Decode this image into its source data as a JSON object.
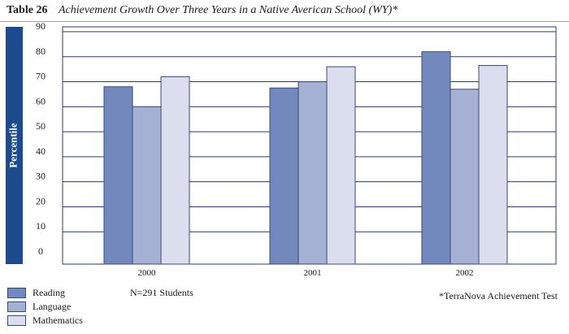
{
  "header": {
    "label": "Table 26",
    "title": "Achievement Growth Over Three Years in a Native Averican School (WY)*"
  },
  "notes": {
    "students": "N=291 Students",
    "footnote": "*TerraNova Achievement Test"
  },
  "colors": {
    "Reading": "#7389bd",
    "Language": "#a5b1d4",
    "Mathematics": "#dadeee",
    "ylabel_bar": "#1c4a8c"
  },
  "chart_data": {
    "type": "bar",
    "title": "Achievement Growth Over Three Years in a Native Averican School (WY)*",
    "xlabel": "",
    "ylabel": "Percentile",
    "ylim": [
      0,
      90
    ],
    "yticks": [
      0,
      10,
      20,
      30,
      40,
      50,
      60,
      70,
      80,
      90
    ],
    "categories": [
      "2000",
      "2001",
      "2002"
    ],
    "series": [
      {
        "name": "Reading",
        "values": [
          68,
          67.5,
          82
        ]
      },
      {
        "name": "Language",
        "values": [
          60,
          70,
          67
        ]
      },
      {
        "name": "Mathematics",
        "values": [
          72,
          76,
          76.5
        ]
      }
    ],
    "grid": true,
    "legend": "bottom-left"
  }
}
